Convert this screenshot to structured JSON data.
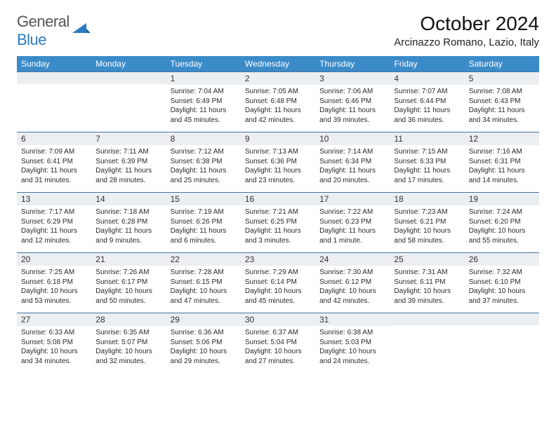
{
  "brand": {
    "general": "General",
    "blue": "Blue"
  },
  "title": "October 2024",
  "location": "Arcinazzo Romano, Lazio, Italy",
  "colors": {
    "header_bg": "#3b8bc9",
    "header_text": "#ffffff",
    "daynum_bg": "#eceff2",
    "border": "#4573a0",
    "logo_blue": "#2b7bbf",
    "logo_gray": "#555555"
  },
  "fonts": {
    "title_size": 28,
    "location_size": 15,
    "header_size": 12,
    "daynum_size": 12,
    "body_size": 10
  },
  "day_headers": [
    "Sunday",
    "Monday",
    "Tuesday",
    "Wednesday",
    "Thursday",
    "Friday",
    "Saturday"
  ],
  "weeks": [
    [
      null,
      null,
      {
        "n": "1",
        "sr": "Sunrise: 7:04 AM",
        "ss": "Sunset: 6:49 PM",
        "dl": "Daylight: 11 hours and 45 minutes."
      },
      {
        "n": "2",
        "sr": "Sunrise: 7:05 AM",
        "ss": "Sunset: 6:48 PM",
        "dl": "Daylight: 11 hours and 42 minutes."
      },
      {
        "n": "3",
        "sr": "Sunrise: 7:06 AM",
        "ss": "Sunset: 6:46 PM",
        "dl": "Daylight: 11 hours and 39 minutes."
      },
      {
        "n": "4",
        "sr": "Sunrise: 7:07 AM",
        "ss": "Sunset: 6:44 PM",
        "dl": "Daylight: 11 hours and 36 minutes."
      },
      {
        "n": "5",
        "sr": "Sunrise: 7:08 AM",
        "ss": "Sunset: 6:43 PM",
        "dl": "Daylight: 11 hours and 34 minutes."
      }
    ],
    [
      {
        "n": "6",
        "sr": "Sunrise: 7:09 AM",
        "ss": "Sunset: 6:41 PM",
        "dl": "Daylight: 11 hours and 31 minutes."
      },
      {
        "n": "7",
        "sr": "Sunrise: 7:11 AM",
        "ss": "Sunset: 6:39 PM",
        "dl": "Daylight: 11 hours and 28 minutes."
      },
      {
        "n": "8",
        "sr": "Sunrise: 7:12 AM",
        "ss": "Sunset: 6:38 PM",
        "dl": "Daylight: 11 hours and 25 minutes."
      },
      {
        "n": "9",
        "sr": "Sunrise: 7:13 AM",
        "ss": "Sunset: 6:36 PM",
        "dl": "Daylight: 11 hours and 23 minutes."
      },
      {
        "n": "10",
        "sr": "Sunrise: 7:14 AM",
        "ss": "Sunset: 6:34 PM",
        "dl": "Daylight: 11 hours and 20 minutes."
      },
      {
        "n": "11",
        "sr": "Sunrise: 7:15 AM",
        "ss": "Sunset: 6:33 PM",
        "dl": "Daylight: 11 hours and 17 minutes."
      },
      {
        "n": "12",
        "sr": "Sunrise: 7:16 AM",
        "ss": "Sunset: 6:31 PM",
        "dl": "Daylight: 11 hours and 14 minutes."
      }
    ],
    [
      {
        "n": "13",
        "sr": "Sunrise: 7:17 AM",
        "ss": "Sunset: 6:29 PM",
        "dl": "Daylight: 11 hours and 12 minutes."
      },
      {
        "n": "14",
        "sr": "Sunrise: 7:18 AM",
        "ss": "Sunset: 6:28 PM",
        "dl": "Daylight: 11 hours and 9 minutes."
      },
      {
        "n": "15",
        "sr": "Sunrise: 7:19 AM",
        "ss": "Sunset: 6:26 PM",
        "dl": "Daylight: 11 hours and 6 minutes."
      },
      {
        "n": "16",
        "sr": "Sunrise: 7:21 AM",
        "ss": "Sunset: 6:25 PM",
        "dl": "Daylight: 11 hours and 3 minutes."
      },
      {
        "n": "17",
        "sr": "Sunrise: 7:22 AM",
        "ss": "Sunset: 6:23 PM",
        "dl": "Daylight: 11 hours and 1 minute."
      },
      {
        "n": "18",
        "sr": "Sunrise: 7:23 AM",
        "ss": "Sunset: 6:21 PM",
        "dl": "Daylight: 10 hours and 58 minutes."
      },
      {
        "n": "19",
        "sr": "Sunrise: 7:24 AM",
        "ss": "Sunset: 6:20 PM",
        "dl": "Daylight: 10 hours and 55 minutes."
      }
    ],
    [
      {
        "n": "20",
        "sr": "Sunrise: 7:25 AM",
        "ss": "Sunset: 6:18 PM",
        "dl": "Daylight: 10 hours and 53 minutes."
      },
      {
        "n": "21",
        "sr": "Sunrise: 7:26 AM",
        "ss": "Sunset: 6:17 PM",
        "dl": "Daylight: 10 hours and 50 minutes."
      },
      {
        "n": "22",
        "sr": "Sunrise: 7:28 AM",
        "ss": "Sunset: 6:15 PM",
        "dl": "Daylight: 10 hours and 47 minutes."
      },
      {
        "n": "23",
        "sr": "Sunrise: 7:29 AM",
        "ss": "Sunset: 6:14 PM",
        "dl": "Daylight: 10 hours and 45 minutes."
      },
      {
        "n": "24",
        "sr": "Sunrise: 7:30 AM",
        "ss": "Sunset: 6:12 PM",
        "dl": "Daylight: 10 hours and 42 minutes."
      },
      {
        "n": "25",
        "sr": "Sunrise: 7:31 AM",
        "ss": "Sunset: 6:11 PM",
        "dl": "Daylight: 10 hours and 39 minutes."
      },
      {
        "n": "26",
        "sr": "Sunrise: 7:32 AM",
        "ss": "Sunset: 6:10 PM",
        "dl": "Daylight: 10 hours and 37 minutes."
      }
    ],
    [
      {
        "n": "27",
        "sr": "Sunrise: 6:33 AM",
        "ss": "Sunset: 5:08 PM",
        "dl": "Daylight: 10 hours and 34 minutes."
      },
      {
        "n": "28",
        "sr": "Sunrise: 6:35 AM",
        "ss": "Sunset: 5:07 PM",
        "dl": "Daylight: 10 hours and 32 minutes."
      },
      {
        "n": "29",
        "sr": "Sunrise: 6:36 AM",
        "ss": "Sunset: 5:06 PM",
        "dl": "Daylight: 10 hours and 29 minutes."
      },
      {
        "n": "30",
        "sr": "Sunrise: 6:37 AM",
        "ss": "Sunset: 5:04 PM",
        "dl": "Daylight: 10 hours and 27 minutes."
      },
      {
        "n": "31",
        "sr": "Sunrise: 6:38 AM",
        "ss": "Sunset: 5:03 PM",
        "dl": "Daylight: 10 hours and 24 minutes."
      },
      null,
      null
    ]
  ]
}
